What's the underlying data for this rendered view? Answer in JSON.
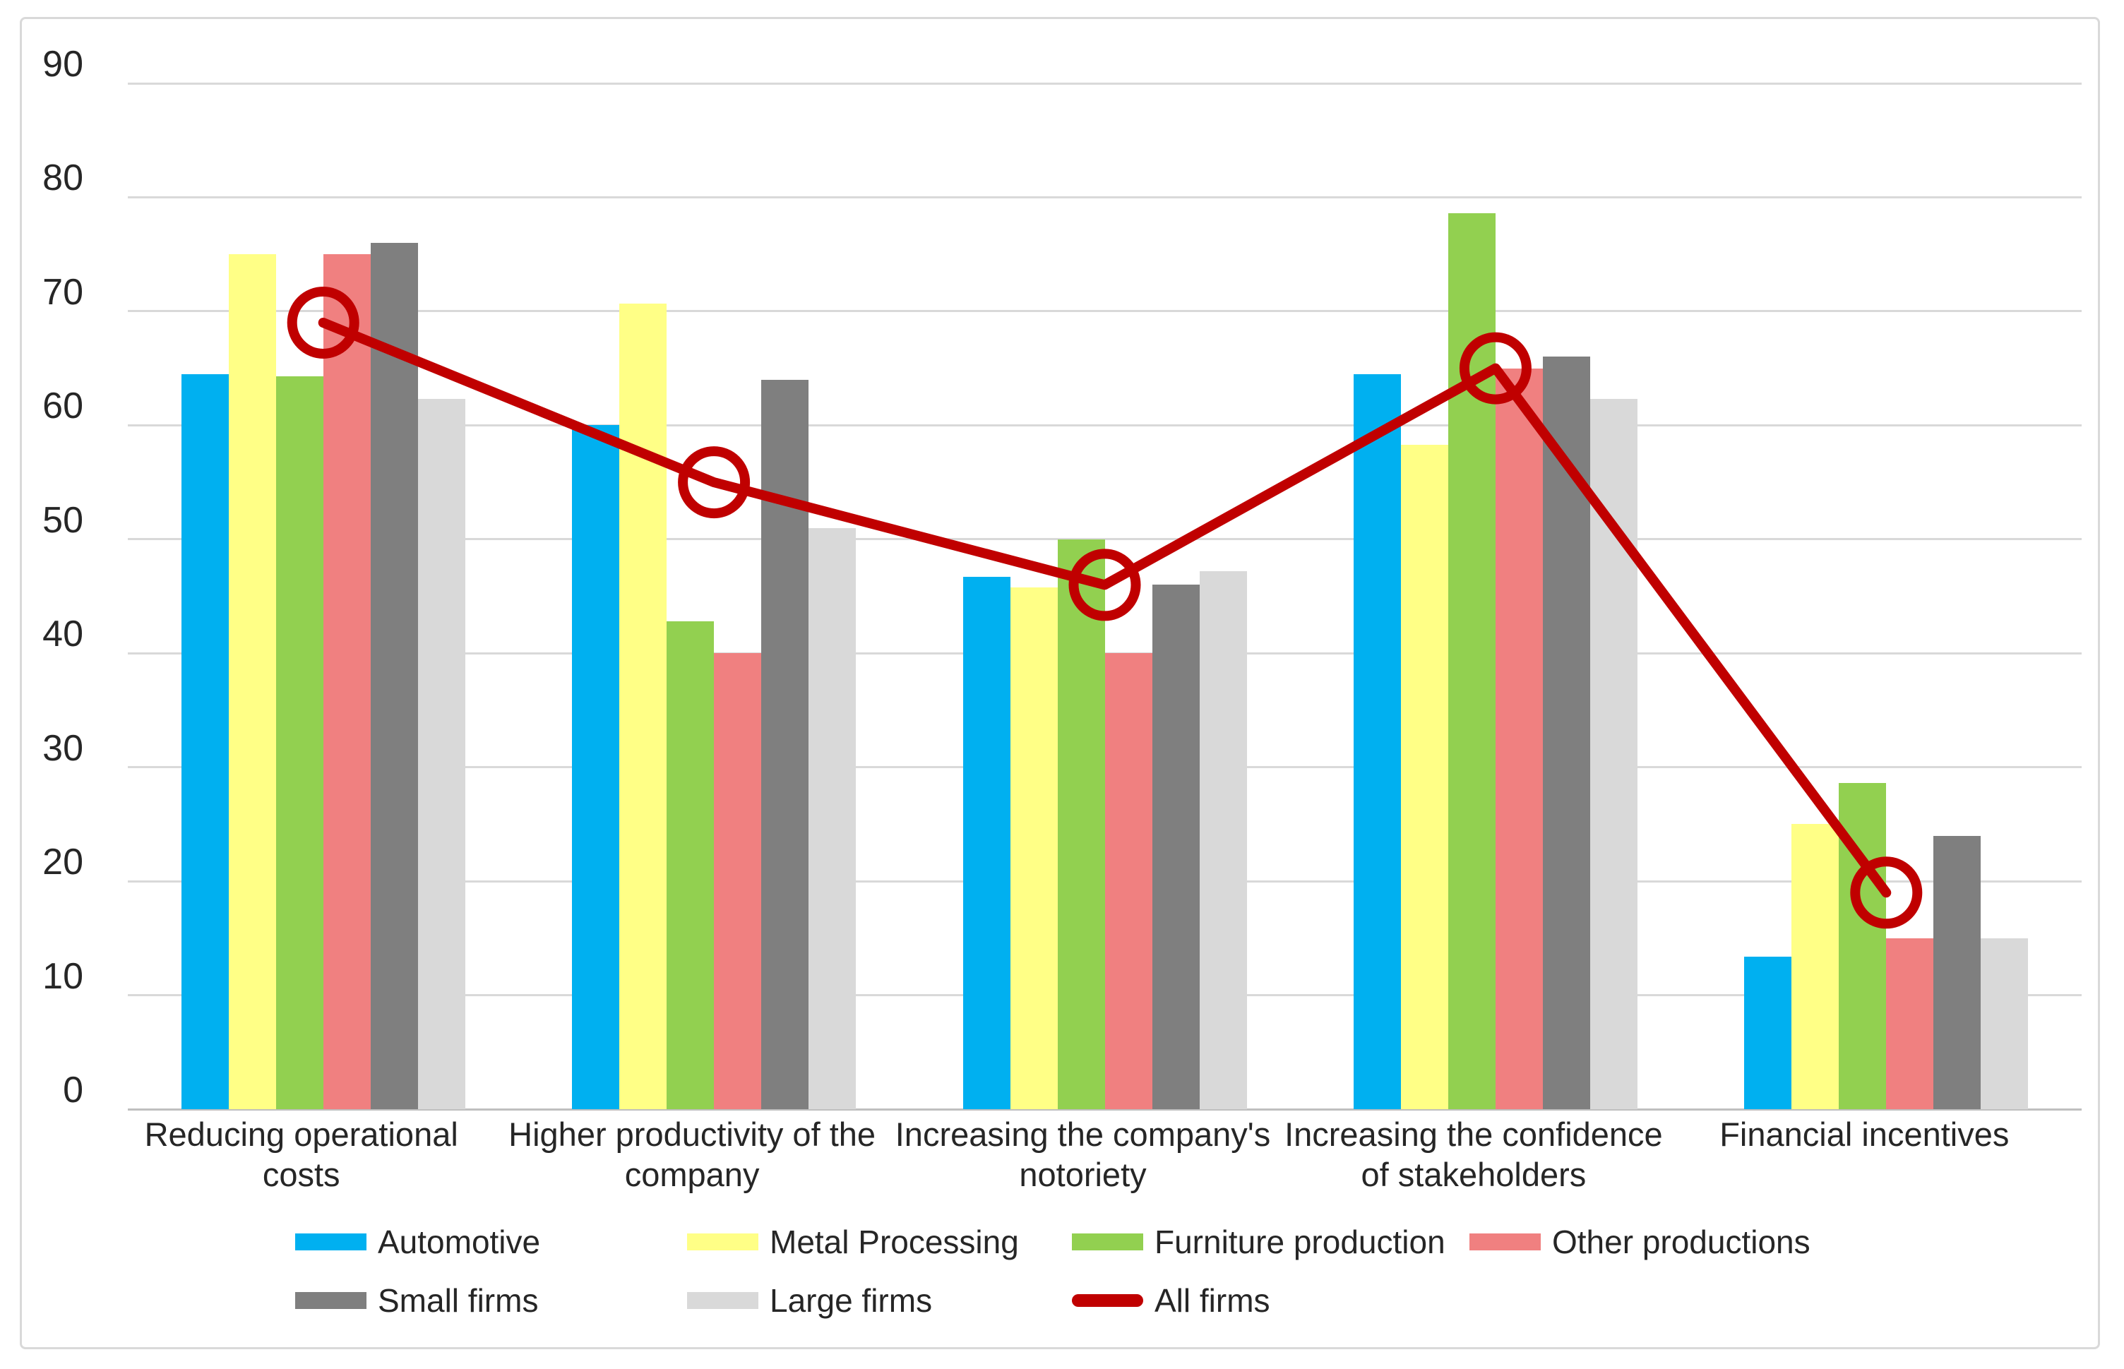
{
  "chart_data": {
    "type": "bar+line",
    "title": "",
    "categories": [
      "Reducing operational costs",
      "Higher productivity of the company",
      "Increasing the company's notoriety",
      "Increasing the confidence of stakeholders",
      "Financial incentives"
    ],
    "category_lines": [
      [
        "Reducing operational",
        "costs"
      ],
      [
        "Higher productivity of the",
        "company"
      ],
      [
        "Increasing the company's",
        "notoriety"
      ],
      [
        "Increasing the confidence",
        "of stakeholders"
      ],
      [
        "Financial incentives"
      ]
    ],
    "series": [
      {
        "name": "Automotive",
        "color": "#00b0f0",
        "values": [
          64.5,
          60.0,
          46.7,
          64.5,
          13.4
        ]
      },
      {
        "name": "Metal Processing",
        "color": "#ffff86",
        "values": [
          75.0,
          70.7,
          45.8,
          58.3,
          25.0
        ]
      },
      {
        "name": "Furniture production",
        "color": "#92d050",
        "values": [
          64.3,
          42.8,
          50.0,
          78.6,
          28.6
        ]
      },
      {
        "name": "Other productions",
        "color": "#f08080",
        "values": [
          75.0,
          40.0,
          40.0,
          65.0,
          15.0
        ]
      },
      {
        "name": "Small firms",
        "color": "#7f7f7f",
        "values": [
          76.0,
          64.0,
          46.0,
          66.0,
          24.0
        ]
      },
      {
        "name": "Large firms",
        "color": "#d9d9d9",
        "values": [
          62.3,
          51.0,
          47.2,
          62.3,
          15.0
        ]
      }
    ],
    "line_series": {
      "name": "All firms",
      "color": "#c00000",
      "values": [
        69,
        55,
        46,
        65,
        19
      ]
    },
    "ylim": [
      0,
      90
    ],
    "ytick_step": 10,
    "yticks": [
      0,
      10,
      20,
      30,
      40,
      50,
      60,
      70,
      80,
      90
    ],
    "grid": true,
    "legend_position": "bottom",
    "legend_rows": [
      [
        "Automotive",
        "Metal Processing",
        "Furniture production",
        "Other productions"
      ],
      [
        "Small firms",
        "Large firms",
        "All firms"
      ]
    ]
  },
  "styles": {
    "background": "#ffffff",
    "frame_color": "#d9d9d9",
    "grid_color": "#d9d9d9",
    "axis_color": "#bfbfbf",
    "text_color": "#262626",
    "line_color": "#c00000"
  }
}
